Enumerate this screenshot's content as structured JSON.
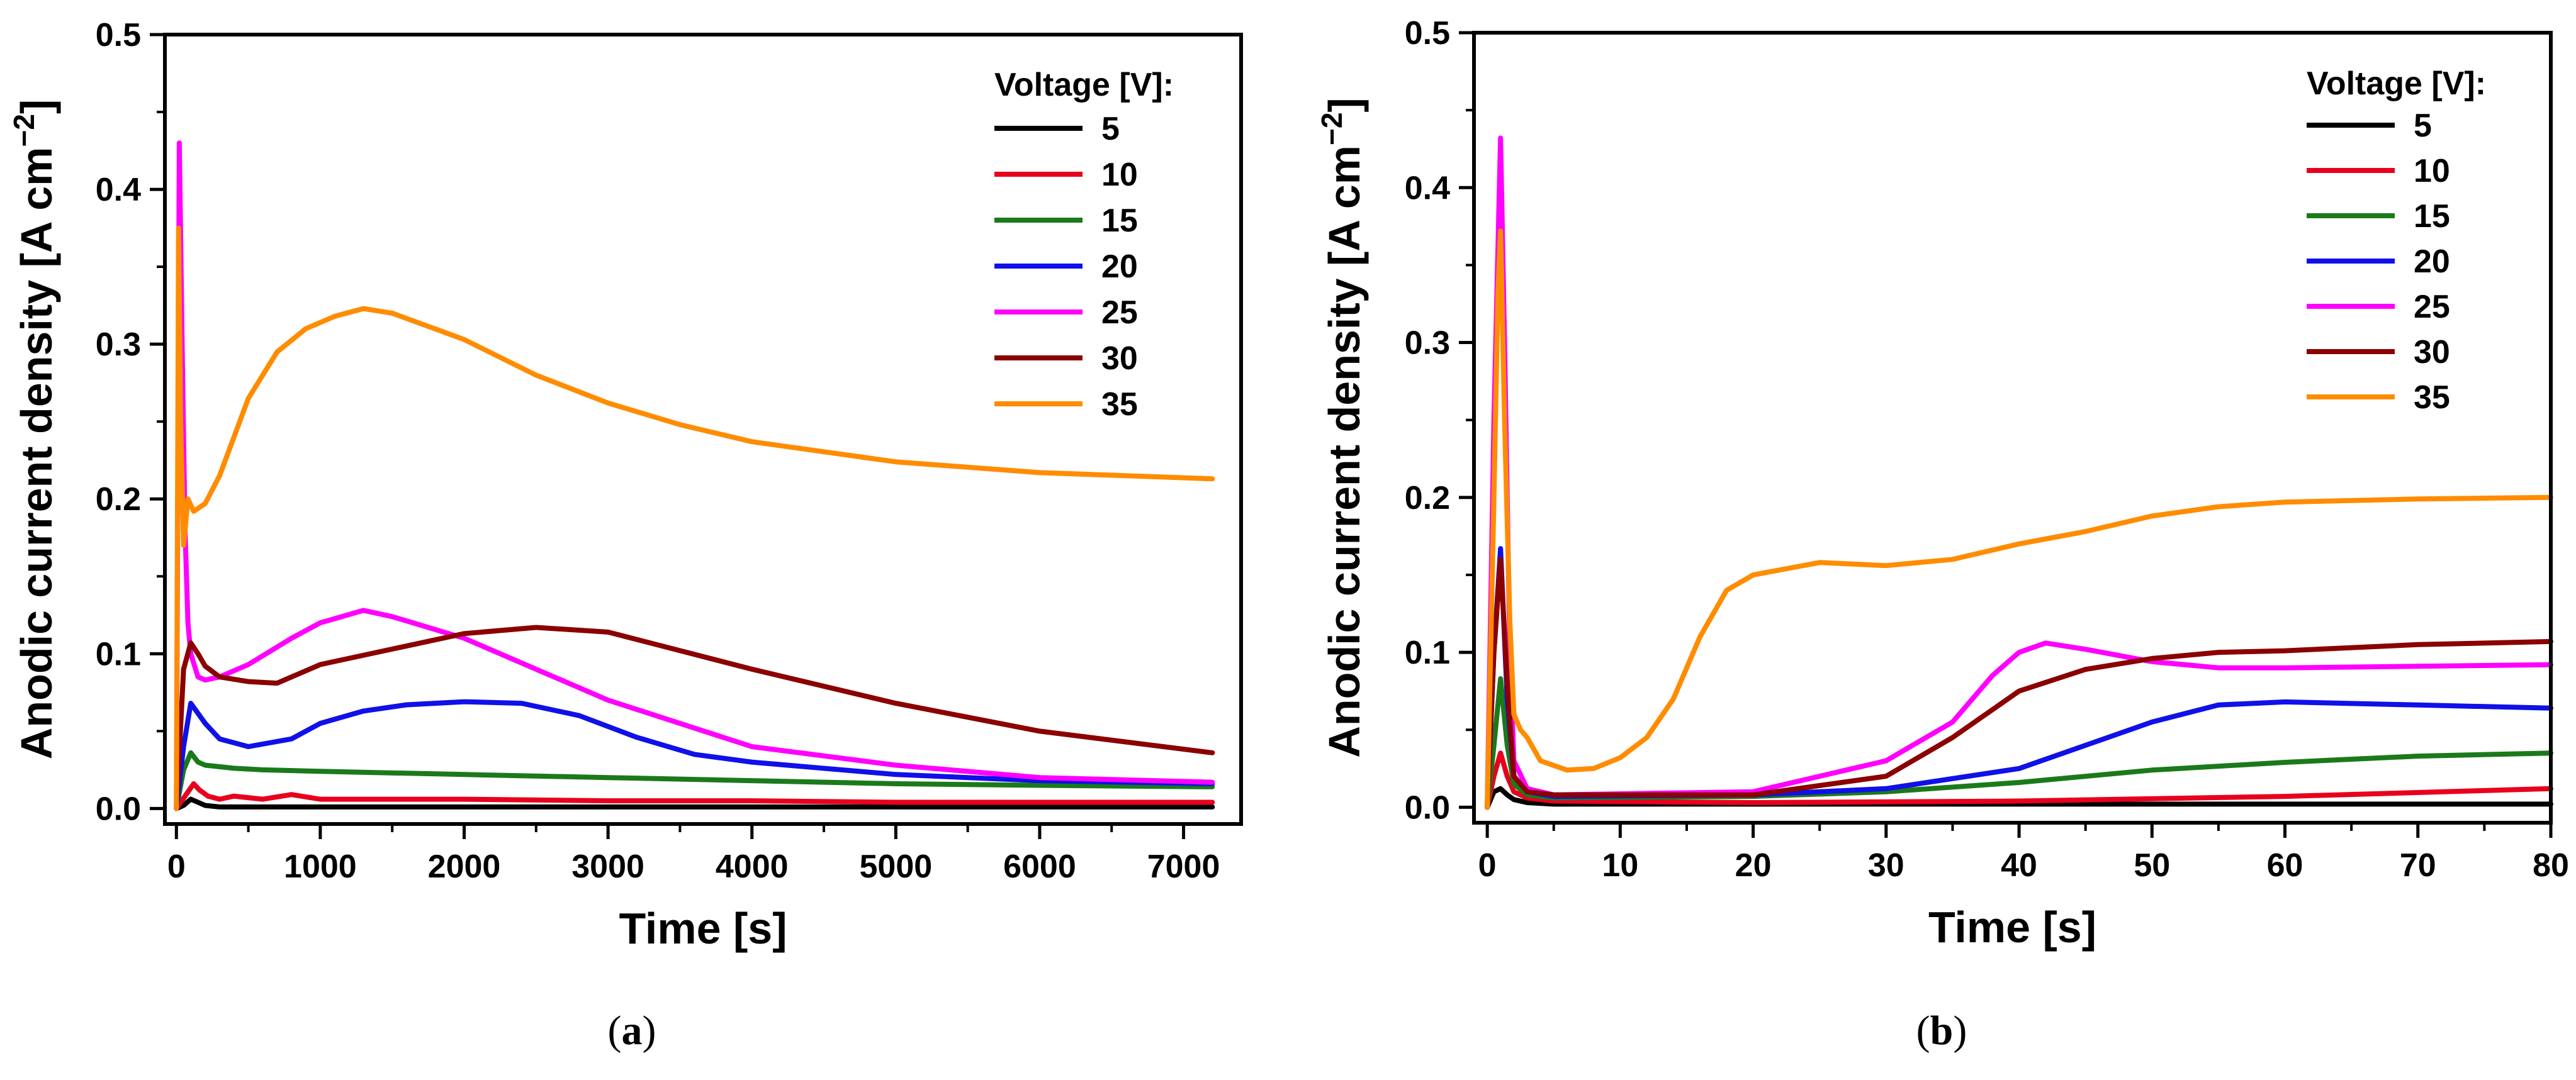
{
  "chart_data": [
    {
      "type": "line",
      "panel": "a",
      "caption": {
        "open": "(",
        "letter": "a",
        "close": ")"
      },
      "title": "",
      "xlabel": "Time [s]",
      "ylabel_main": "Anodic current density [A cm",
      "ylabel_sup": "−2",
      "ylabel_close": "]",
      "xlim": [
        -80,
        7400
      ],
      "ylim": [
        -0.01,
        0.5
      ],
      "xticks": [
        0,
        1000,
        2000,
        3000,
        4000,
        5000,
        6000,
        7000
      ],
      "xtick_labels": [
        "0",
        "1000",
        "2000",
        "3000",
        "4000",
        "5000",
        "6000",
        "7000"
      ],
      "yticks": [
        0.0,
        0.1,
        0.2,
        0.3,
        0.4,
        0.5
      ],
      "ytick_labels": [
        "0.0",
        "0.1",
        "0.2",
        "0.3",
        "0.4",
        "0.5"
      ],
      "legend": {
        "title": "Voltage [V]:",
        "position": "top-right"
      },
      "series": [
        {
          "name": "5",
          "color": "#000000",
          "x": [
            0,
            50,
            100,
            150,
            200,
            300,
            500,
            1000,
            2000,
            4000,
            7200
          ],
          "y": [
            0,
            0.002,
            0.006,
            0.004,
            0.002,
            0.001,
            0.001,
            0.001,
            0.001,
            0.001,
            0.001
          ]
        },
        {
          "name": "10",
          "color": "#e8001c",
          "x": [
            0,
            60,
            120,
            160,
            220,
            300,
            400,
            600,
            800,
            1000,
            1500,
            2000,
            3000,
            4000,
            5000,
            6000,
            7200
          ],
          "y": [
            0,
            0.008,
            0.016,
            0.012,
            0.008,
            0.006,
            0.008,
            0.006,
            0.009,
            0.006,
            0.006,
            0.006,
            0.005,
            0.005,
            0.004,
            0.004,
            0.004
          ]
        },
        {
          "name": "15",
          "color": "#1a7a1a",
          "x": [
            0,
            50,
            100,
            150,
            200,
            400,
            600,
            1000,
            2000,
            3000,
            4000,
            5000,
            6000,
            7200
          ],
          "y": [
            0,
            0.025,
            0.036,
            0.03,
            0.028,
            0.026,
            0.025,
            0.024,
            0.022,
            0.02,
            0.018,
            0.016,
            0.015,
            0.014
          ]
        },
        {
          "name": "20",
          "color": "#1010e8",
          "x": [
            0,
            50,
            100,
            200,
            300,
            500,
            800,
            1000,
            1300,
            1600,
            2000,
            2400,
            2800,
            3200,
            3600,
            4000,
            5000,
            6000,
            7200
          ],
          "y": [
            0,
            0.04,
            0.068,
            0.055,
            0.045,
            0.04,
            0.045,
            0.055,
            0.063,
            0.067,
            0.069,
            0.068,
            0.06,
            0.046,
            0.035,
            0.03,
            0.022,
            0.018,
            0.016
          ]
        },
        {
          "name": "25",
          "color": "#ff00ff",
          "x": [
            0,
            20,
            40,
            60,
            80,
            100,
            150,
            200,
            300,
            500,
            800,
            1000,
            1300,
            1500,
            2000,
            2500,
            3000,
            4000,
            5000,
            6000,
            7200
          ],
          "y": [
            0,
            0.43,
            0.3,
            0.18,
            0.12,
            0.1,
            0.085,
            0.083,
            0.085,
            0.093,
            0.11,
            0.12,
            0.128,
            0.124,
            0.11,
            0.09,
            0.07,
            0.04,
            0.028,
            0.02,
            0.017
          ]
        },
        {
          "name": "30",
          "color": "#8b0000",
          "x": [
            0,
            50,
            100,
            150,
            200,
            300,
            500,
            700,
            1000,
            1500,
            2000,
            2500,
            3000,
            3500,
            4000,
            5000,
            6000,
            7200
          ],
          "y": [
            0,
            0.09,
            0.107,
            0.1,
            0.092,
            0.085,
            0.082,
            0.081,
            0.093,
            0.103,
            0.113,
            0.117,
            0.114,
            0.102,
            0.09,
            0.068,
            0.05,
            0.036
          ]
        },
        {
          "name": "35",
          "color": "#ff8c00",
          "x": [
            0,
            15,
            30,
            50,
            80,
            120,
            200,
            300,
            500,
            700,
            900,
            1100,
            1300,
            1500,
            2000,
            2500,
            3000,
            3500,
            4000,
            5000,
            6000,
            7200
          ],
          "y": [
            0,
            0.375,
            0.25,
            0.17,
            0.2,
            0.192,
            0.197,
            0.215,
            0.265,
            0.295,
            0.31,
            0.318,
            0.323,
            0.32,
            0.303,
            0.28,
            0.262,
            0.248,
            0.237,
            0.224,
            0.217,
            0.213
          ]
        }
      ]
    },
    {
      "type": "line",
      "panel": "b",
      "caption": {
        "open": "(",
        "letter": "b",
        "close": ")"
      },
      "title": "",
      "xlabel": "Time [s]",
      "ylabel_main": "Anodic current density [A cm",
      "ylabel_sup": "−2",
      "ylabel_close": "]",
      "xlim": [
        -1,
        80
      ],
      "ylim": [
        -0.01,
        0.5
      ],
      "xticks": [
        0,
        10,
        20,
        30,
        40,
        50,
        60,
        70,
        80
      ],
      "xtick_labels": [
        "0",
        "10",
        "20",
        "30",
        "40",
        "50",
        "60",
        "70",
        "80"
      ],
      "yticks": [
        0.0,
        0.1,
        0.2,
        0.3,
        0.4,
        0.5
      ],
      "ytick_labels": [
        "0.0",
        "0.1",
        "0.2",
        "0.3",
        "0.4",
        "0.5"
      ],
      "legend": {
        "title": "Voltage [V]:",
        "position": "top-right"
      },
      "series": [
        {
          "name": "5",
          "color": "#000000",
          "x": [
            0,
            0.5,
            1,
            1.5,
            2,
            3,
            5,
            20,
            40,
            60,
            80
          ],
          "y": [
            0,
            0.01,
            0.012,
            0.008,
            0.005,
            0.003,
            0.002,
            0.002,
            0.002,
            0.002,
            0.002
          ]
        },
        {
          "name": "10",
          "color": "#e8001c",
          "x": [
            0,
            0.5,
            1,
            1.5,
            2,
            3,
            5,
            20,
            40,
            60,
            80
          ],
          "y": [
            0,
            0.02,
            0.035,
            0.02,
            0.01,
            0.006,
            0.004,
            0.003,
            0.004,
            0.007,
            0.012
          ]
        },
        {
          "name": "15",
          "color": "#1a7a1a",
          "x": [
            0,
            0.5,
            1,
            1.5,
            2,
            3,
            5,
            20,
            30,
            40,
            50,
            60,
            70,
            80
          ],
          "y": [
            0,
            0.04,
            0.083,
            0.04,
            0.015,
            0.008,
            0.006,
            0.007,
            0.01,
            0.016,
            0.024,
            0.029,
            0.033,
            0.035
          ]
        },
        {
          "name": "20",
          "color": "#1010e8",
          "x": [
            0,
            0.5,
            1,
            1.5,
            2,
            3,
            5,
            20,
            30,
            40,
            45,
            50,
            55,
            60,
            70,
            80
          ],
          "y": [
            0,
            0.1,
            0.167,
            0.07,
            0.02,
            0.01,
            0.007,
            0.008,
            0.012,
            0.025,
            0.04,
            0.055,
            0.066,
            0.068,
            0.066,
            0.064
          ]
        },
        {
          "name": "25",
          "color": "#ff00ff",
          "x": [
            0,
            0.5,
            1,
            1.3,
            1.7,
            2,
            3,
            5,
            20,
            30,
            35,
            38,
            40,
            42,
            45,
            50,
            55,
            60,
            70,
            80
          ],
          "y": [
            0,
            0.25,
            0.432,
            0.3,
            0.1,
            0.03,
            0.012,
            0.008,
            0.01,
            0.03,
            0.055,
            0.085,
            0.1,
            0.106,
            0.102,
            0.094,
            0.09,
            0.09,
            0.091,
            0.092
          ]
        },
        {
          "name": "30",
          "color": "#8b0000",
          "x": [
            0,
            0.5,
            1,
            1.5,
            2,
            3,
            5,
            20,
            30,
            35,
            40,
            45,
            50,
            55,
            60,
            70,
            80
          ],
          "y": [
            0,
            0.1,
            0.16,
            0.08,
            0.02,
            0.01,
            0.008,
            0.008,
            0.02,
            0.045,
            0.075,
            0.089,
            0.096,
            0.1,
            0.101,
            0.105,
            0.107
          ]
        },
        {
          "name": "35",
          "color": "#ff8c00",
          "x": [
            0,
            0.5,
            0.8,
            1,
            1.3,
            1.7,
            2,
            2.5,
            3,
            4,
            6,
            8,
            10,
            12,
            14,
            16,
            18,
            20,
            25,
            30,
            35,
            40,
            45,
            50,
            55,
            60,
            70,
            80
          ],
          "y": [
            0,
            0.2,
            0.33,
            0.372,
            0.25,
            0.12,
            0.06,
            0.05,
            0.045,
            0.03,
            0.024,
            0.025,
            0.032,
            0.045,
            0.07,
            0.11,
            0.14,
            0.15,
            0.158,
            0.156,
            0.16,
            0.17,
            0.178,
            0.188,
            0.194,
            0.197,
            0.199,
            0.2
          ]
        }
      ]
    }
  ]
}
